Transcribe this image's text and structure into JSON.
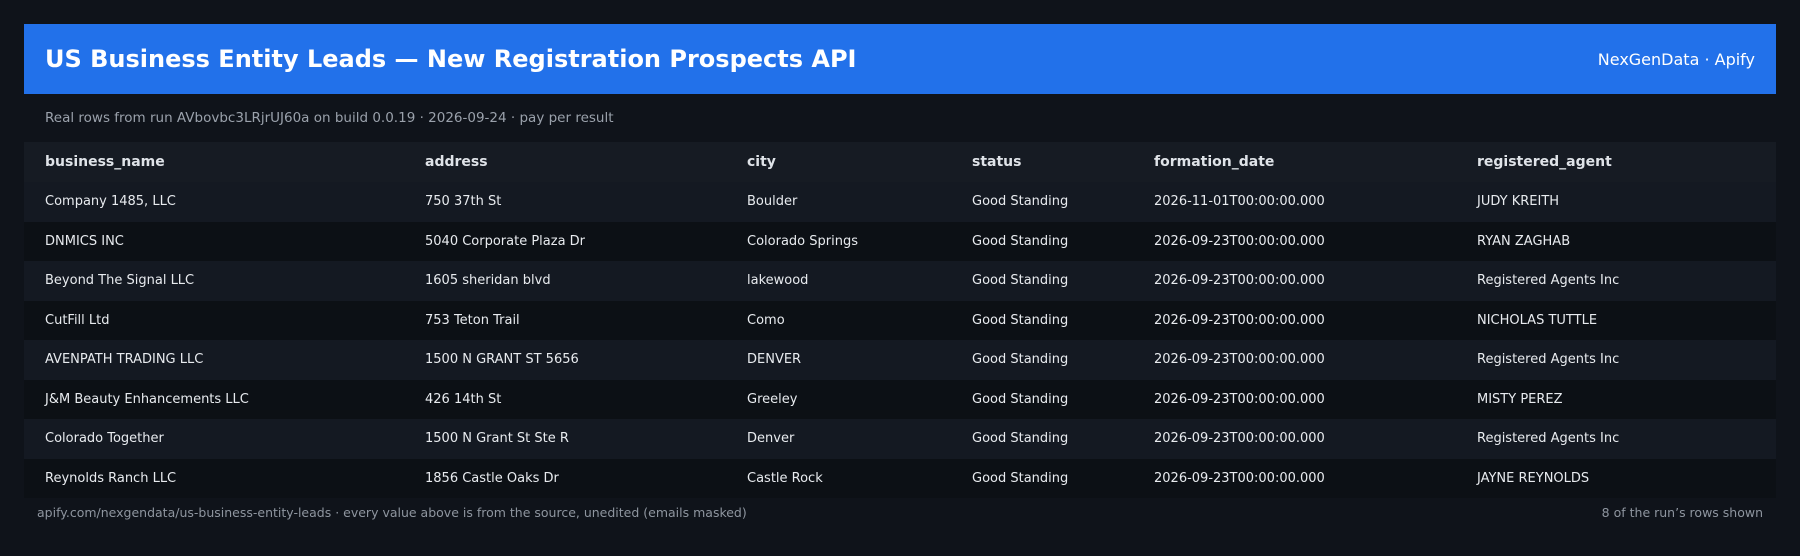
{
  "header": {
    "title": "US Business Entity Leads — New Registration Prospects API",
    "brand": "NexGenData · Apify"
  },
  "subtitle": "Real rows from run AVbovbc3LRjrUJ60a on build 0.0.19 · 2026-09-24 · pay per result",
  "table": {
    "columns": [
      "business_name",
      "address",
      "city",
      "status",
      "formation_date",
      "registered_agent"
    ],
    "rows": [
      [
        "Company 1485, LLC",
        "750 37th St",
        "Boulder",
        "Good Standing",
        "2026-11-01T00:00:00.000",
        "JUDY KREITH"
      ],
      [
        "DNMICS INC",
        "5040 Corporate Plaza Dr",
        "Colorado Springs",
        "Good Standing",
        "2026-09-23T00:00:00.000",
        "RYAN ZAGHAB"
      ],
      [
        "Beyond The Signal LLC",
        "1605 sheridan blvd",
        "lakewood",
        "Good Standing",
        "2026-09-23T00:00:00.000",
        "Registered Agents Inc"
      ],
      [
        "CutFill Ltd",
        "753 Teton Trail",
        "Como",
        "Good Standing",
        "2026-09-23T00:00:00.000",
        "NICHOLAS TUTTLE"
      ],
      [
        "AVENPATH TRADING LLC",
        "1500 N GRANT ST 5656",
        "DENVER",
        "Good Standing",
        "2026-09-23T00:00:00.000",
        "Registered Agents Inc"
      ],
      [
        "J&M Beauty Enhancements LLC",
        "426 14th St",
        "Greeley",
        "Good Standing",
        "2026-09-23T00:00:00.000",
        "MISTY PEREZ"
      ],
      [
        "Colorado Together",
        "1500 N Grant St Ste R",
        "Denver",
        "Good Standing",
        "2026-09-23T00:00:00.000",
        "Registered Agents Inc"
      ],
      [
        "Reynolds Ranch LLC",
        "1856 Castle Oaks Dr",
        "Castle Rock",
        "Good Standing",
        "2026-09-23T00:00:00.000",
        "JAYNE REYNOLDS"
      ]
    ]
  },
  "footer": {
    "source": "apify.com/nexgendata/us-business-entity-leads  ·  every value above is from the source, unedited (emails masked)",
    "count": "8 of the run’s rows shown"
  },
  "colors": {
    "header_bg": "#2271ea",
    "page_bg": "#0f131a"
  }
}
